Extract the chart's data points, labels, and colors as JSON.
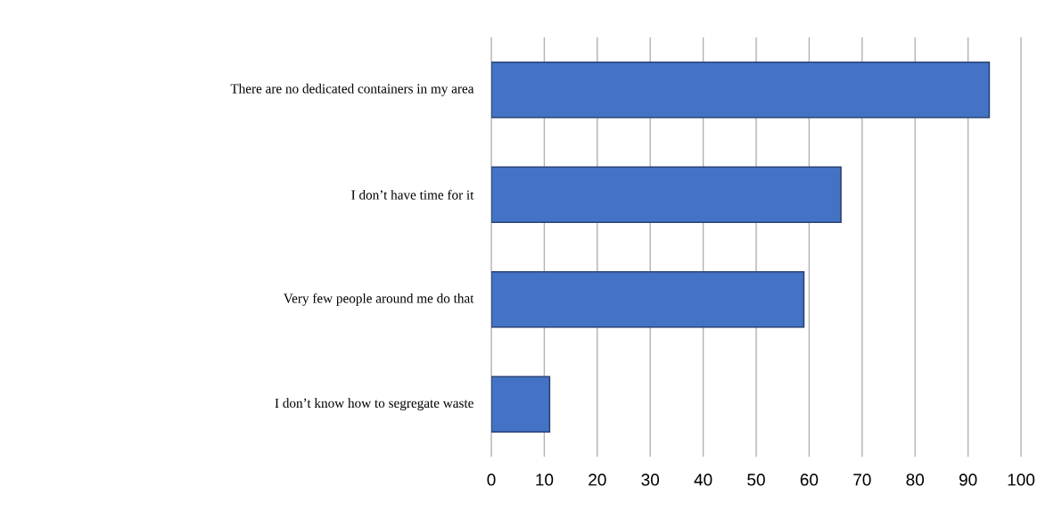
{
  "chart_data": {
    "type": "bar",
    "orientation": "horizontal",
    "categories": [
      "There are no dedicated containers in my area",
      "I don’t have time for it",
      "Very few people around me do that",
      "I don’t know how to segregate waste"
    ],
    "values": [
      94,
      66,
      59,
      11
    ],
    "color": "#4472c4",
    "xlim": [
      0,
      100
    ],
    "xticks": [
      0,
      10,
      20,
      30,
      40,
      50,
      60,
      70,
      80,
      90,
      100
    ],
    "grid": "x"
  }
}
